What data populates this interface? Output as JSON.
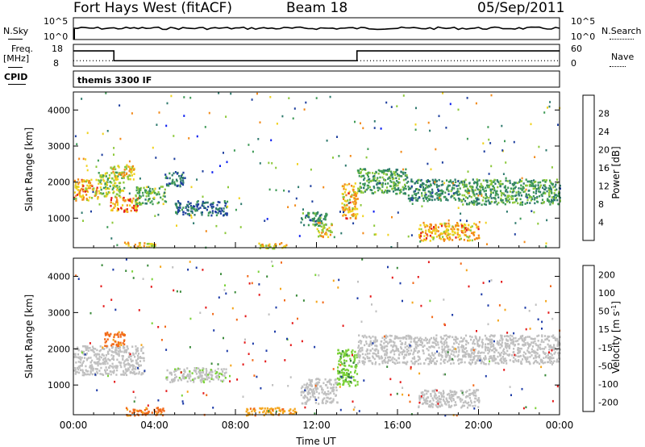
{
  "header": {
    "radar": "Fort Hays West (fitACF)",
    "beam": "Beam 18",
    "date": "05/Sep/2011"
  },
  "top_panels": {
    "nsky": {
      "label": "N.Sky",
      "ticks": [
        "10^5",
        "10^0"
      ]
    },
    "nsearch": {
      "label": "N.Search",
      "ticks": [
        "10^5",
        "10^0"
      ]
    },
    "freq": {
      "label_line1": "Freq.",
      "label_line2": "[MHz]",
      "ticks": [
        "18",
        "8"
      ]
    },
    "nave": {
      "label": "Nave",
      "ticks": [
        "60",
        "0"
      ]
    },
    "cpid": {
      "label": "CPID",
      "value": "themis 3300 IF"
    }
  },
  "colors": {
    "power_scale": [
      "#0a1cf0",
      "#1e3f9e",
      "#2f7a6e",
      "#3e9a56",
      "#8cc83a",
      "#f0d21e",
      "#f28a1a",
      "#e41a1a"
    ],
    "velocity_scale": [
      "#e41a1a",
      "#f26a1a",
      "#f4a51a",
      "#c8c8c8",
      "#c8c8c8",
      "#7cd23a",
      "#3a8a3a",
      "#1e3ca8",
      "#0a1cf0"
    ],
    "ground_scatter": "#c0c0c0"
  },
  "chart_data": [
    {
      "type": "heatmap",
      "name": "power",
      "xlabel": "",
      "ylabel": "Slant Range [km]",
      "ylim": [
        180,
        4500
      ],
      "xlim": [
        "00:00",
        "24:00"
      ],
      "yticks": [
        "1000",
        "2000",
        "3000",
        "4000"
      ],
      "colorbar_label": "Power [dB]",
      "colorbar_ticks": [
        "4",
        "8",
        "12",
        "16",
        "20",
        "24",
        "28"
      ],
      "regions": [
        {
          "t0": 0.0,
          "t1": 1.2,
          "r0": 1500,
          "r1": 2100,
          "level": 24
        },
        {
          "t0": 1.2,
          "t1": 2.5,
          "r0": 1600,
          "r1": 2300,
          "level": 18
        },
        {
          "t0": 1.8,
          "t1": 3.2,
          "r0": 1200,
          "r1": 1600,
          "level": 26
        },
        {
          "t0": 1.8,
          "t1": 3.0,
          "r0": 2100,
          "r1": 2500,
          "level": 22
        },
        {
          "t0": 3.0,
          "t1": 4.5,
          "r0": 1400,
          "r1": 1900,
          "level": 16
        },
        {
          "t0": 4.5,
          "t1": 5.5,
          "r0": 1900,
          "r1": 2300,
          "level": 10
        },
        {
          "t0": 5.0,
          "t1": 7.6,
          "r0": 1100,
          "r1": 1500,
          "level": 9
        },
        {
          "t0": 2.5,
          "t1": 4.0,
          "r0": 180,
          "r1": 350,
          "level": 22
        },
        {
          "t0": 9.0,
          "t1": 10.5,
          "r0": 180,
          "r1": 350,
          "level": 22
        },
        {
          "t0": 11.2,
          "t1": 12.5,
          "r0": 800,
          "r1": 1200,
          "level": 12
        },
        {
          "t0": 12.0,
          "t1": 12.8,
          "r0": 500,
          "r1": 900,
          "level": 22
        },
        {
          "t0": 13.2,
          "t1": 14.0,
          "r0": 1000,
          "r1": 2000,
          "level": 24
        },
        {
          "t0": 14.0,
          "t1": 16.5,
          "r0": 1700,
          "r1": 2400,
          "level": 14
        },
        {
          "t0": 16.5,
          "t1": 19.0,
          "r0": 1500,
          "r1": 2100,
          "level": 12
        },
        {
          "t0": 17.0,
          "t1": 20.0,
          "r0": 400,
          "r1": 900,
          "level": 24
        },
        {
          "t0": 19.0,
          "t1": 24.0,
          "r0": 1400,
          "r1": 2100,
          "level": 14
        }
      ]
    },
    {
      "type": "heatmap",
      "name": "velocity",
      "xlabel": "Time UT",
      "ylabel": "Slant Range [km]",
      "ylim": [
        180,
        4500
      ],
      "xlim": [
        "00:00",
        "24:00"
      ],
      "xticks": [
        "00:00",
        "04:00",
        "08:00",
        "12:00",
        "16:00",
        "20:00",
        "00:00"
      ],
      "yticks": [
        "1000",
        "2000",
        "3000",
        "4000"
      ],
      "colorbar_label": "Velocity [m s^-1]",
      "colorbar_ticks": [
        "200",
        "100",
        "50",
        "15",
        "-15",
        "-50",
        "-100",
        "-200"
      ],
      "regions": [
        {
          "t0": 0.0,
          "t1": 3.5,
          "r0": 1300,
          "r1": 2100,
          "level": 0
        },
        {
          "t0": 1.5,
          "t1": 2.5,
          "r0": 2100,
          "r1": 2500,
          "level": -60
        },
        {
          "t0": 4.5,
          "t1": 7.5,
          "r0": 1100,
          "r1": 1500,
          "level": 5
        },
        {
          "t0": 2.5,
          "t1": 4.5,
          "r0": 180,
          "r1": 400,
          "level": -60
        },
        {
          "t0": 8.5,
          "t1": 11.0,
          "r0": 180,
          "r1": 400,
          "level": -40
        },
        {
          "t0": 11.2,
          "t1": 13.0,
          "r0": 500,
          "r1": 1200,
          "level": 0
        },
        {
          "t0": 13.0,
          "t1": 14.0,
          "r0": 1000,
          "r1": 2000,
          "level": 40
        },
        {
          "t0": 14.0,
          "t1": 24.0,
          "r0": 1600,
          "r1": 2400,
          "level": 0
        },
        {
          "t0": 17.0,
          "t1": 20.0,
          "r0": 400,
          "r1": 900,
          "level": 0
        }
      ]
    },
    {
      "type": "line",
      "name": "freq_nave",
      "freq_segments": [
        {
          "x0": 0.0,
          "x1": 2.0,
          "value": 15
        },
        {
          "x0": 2.0,
          "x1": 14.0,
          "value": 10.5
        },
        {
          "x0": 14.0,
          "x1": 24.0,
          "value": 15
        }
      ],
      "nave_value": 15
    }
  ]
}
